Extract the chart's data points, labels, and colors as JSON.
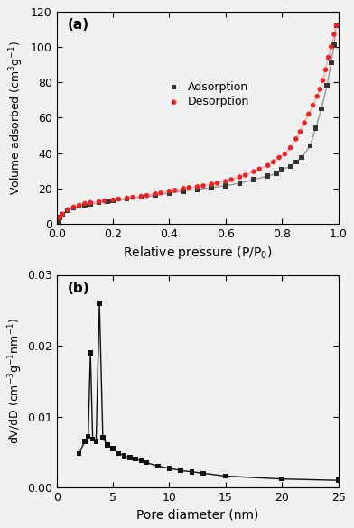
{
  "adsorption_x": [
    0.005,
    0.01,
    0.02,
    0.04,
    0.06,
    0.08,
    0.1,
    0.12,
    0.15,
    0.18,
    0.2,
    0.25,
    0.3,
    0.35,
    0.4,
    0.45,
    0.5,
    0.55,
    0.6,
    0.65,
    0.7,
    0.75,
    0.78,
    0.8,
    0.83,
    0.85,
    0.87,
    0.9,
    0.92,
    0.94,
    0.96,
    0.975,
    0.985,
    0.993
  ],
  "adsorption_y": [
    1.5,
    3.5,
    5.5,
    7.5,
    9.0,
    10.0,
    10.5,
    11.2,
    12.0,
    12.5,
    13.0,
    14.0,
    15.0,
    16.0,
    17.5,
    18.5,
    19.5,
    20.5,
    21.5,
    23.0,
    25.0,
    27.0,
    28.5,
    30.5,
    32.5,
    35.0,
    37.5,
    44.0,
    54.0,
    65.0,
    78.0,
    91.0,
    101.0,
    112.0
  ],
  "desorption_x": [
    0.993,
    0.985,
    0.975,
    0.965,
    0.955,
    0.945,
    0.935,
    0.925,
    0.91,
    0.895,
    0.88,
    0.865,
    0.85,
    0.83,
    0.81,
    0.79,
    0.77,
    0.75,
    0.72,
    0.7,
    0.67,
    0.65,
    0.62,
    0.6,
    0.57,
    0.55,
    0.52,
    0.5,
    0.47,
    0.45,
    0.42,
    0.4,
    0.37,
    0.35,
    0.32,
    0.3,
    0.27,
    0.25,
    0.22,
    0.2,
    0.17,
    0.15,
    0.12,
    0.1,
    0.08,
    0.06,
    0.04,
    0.02,
    0.01
  ],
  "desorption_y": [
    112.0,
    107.0,
    100.0,
    94.0,
    87.0,
    81.0,
    76.0,
    72.0,
    67.0,
    62.0,
    57.0,
    52.0,
    48.0,
    43.0,
    39.5,
    37.5,
    35.0,
    33.0,
    31.0,
    29.5,
    27.5,
    26.5,
    25.0,
    24.0,
    23.0,
    22.5,
    21.5,
    21.0,
    20.5,
    20.0,
    19.0,
    18.5,
    17.5,
    17.0,
    16.0,
    15.5,
    15.0,
    14.5,
    14.0,
    13.5,
    13.0,
    12.5,
    12.0,
    11.5,
    10.5,
    9.5,
    8.0,
    5.5,
    3.5
  ],
  "pore_x": [
    2.0,
    2.5,
    2.8,
    3.0,
    3.2,
    3.5,
    3.8,
    4.1,
    4.5,
    5.0,
    5.5,
    6.0,
    6.5,
    7.0,
    7.5,
    8.0,
    9.0,
    10.0,
    11.0,
    12.0,
    13.0,
    15.0,
    20.0,
    25.0
  ],
  "pore_y": [
    0.0048,
    0.0065,
    0.0072,
    0.019,
    0.0068,
    0.0065,
    0.026,
    0.007,
    0.006,
    0.0055,
    0.0048,
    0.0045,
    0.0042,
    0.004,
    0.0038,
    0.0035,
    0.003,
    0.0027,
    0.0024,
    0.0022,
    0.002,
    0.0016,
    0.0012,
    0.001
  ],
  "adsorption_color": "#333333",
  "desorption_color": "#ee2222",
  "adsorption_line_color": "#999999",
  "desorption_line_color": "#ffaaaa",
  "pore_color": "#111111",
  "ylabel_a": "Volume adsorbed (cm$^3$g$^{-1}$)",
  "xlabel_a": "Relative pressure (P/P$_0$)",
  "ylabel_b": "dV/dD (cm$^{-3}$g$^{-1}$nm$^{-1}$)",
  "xlabel_b": "Pore diameter (nm)",
  "ylim_a": [
    0,
    120
  ],
  "xlim_a": [
    0.0,
    1.0
  ],
  "ylim_b": [
    0.0,
    0.03
  ],
  "xlim_b": [
    0,
    25
  ],
  "label_a": "(a)",
  "label_b": "(b)",
  "legend_adsorption": "Adsorption",
  "legend_desorption": "Desorption",
  "bg_color": "#f0f0f0"
}
